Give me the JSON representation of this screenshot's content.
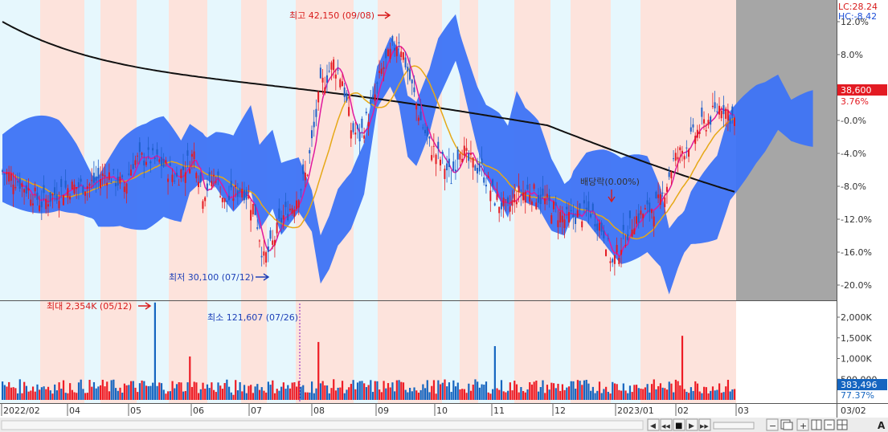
{
  "chart_data": {
    "type": "candlestick",
    "price_axis": {
      "ticks": [
        "12.0%",
        "8.0%",
        "4.0%",
        "-0.0%",
        "-4.0%",
        "-8.0%",
        "-12.0%",
        "-16.0%",
        "-20.0%"
      ],
      "values": [
        12,
        8,
        4,
        0,
        -4,
        -8,
        -12,
        -16,
        -20
      ]
    },
    "volume_axis": {
      "ticks": [
        "2,000K",
        "1,500K",
        "1,000K",
        "500,000"
      ],
      "values": [
        2000,
        1500,
        1000,
        500
      ]
    },
    "x_ticks": [
      "2022/02",
      "04",
      "05",
      "06",
      "07",
      "08",
      "09",
      "10",
      "11",
      "12",
      "2023/01",
      "02",
      "03"
    ],
    "x_tick_right": "03/02",
    "lc_label": "LC:28.24",
    "hc_label": "HC:-8.42",
    "current_price": "38,600",
    "current_change": "3.76%",
    "current_volume": "383,496",
    "current_volume_pct": "77.37%",
    "annotations": {
      "high": "최고 42,150 (09/08)",
      "low": "최저 30,100 (07/12)",
      "vol_max": "최대 2,354K (05/12)",
      "vol_min": "최소 121,607 (07/26)",
      "dividend": "배당락(0.00%)"
    },
    "price_keypoints": [
      [
        0,
        -6.2
      ],
      [
        8,
        -7.5
      ],
      [
        18,
        -10
      ],
      [
        28,
        -8.3
      ],
      [
        40,
        -7.8
      ],
      [
        48,
        -6.5
      ],
      [
        56,
        -8
      ],
      [
        60,
        -5
      ],
      [
        66,
        -4.5
      ],
      [
        72,
        -5
      ],
      [
        80,
        -7
      ],
      [
        88,
        -4
      ],
      [
        92,
        -8.8
      ],
      [
        98,
        -6.5
      ],
      [
        102,
        -10
      ],
      [
        110,
        -8
      ],
      [
        116,
        -11
      ],
      [
        120,
        -17
      ],
      [
        124,
        -15
      ],
      [
        128,
        -12
      ],
      [
        134,
        -10
      ],
      [
        140,
        -6
      ],
      [
        146,
        4
      ],
      [
        152,
        7
      ],
      [
        156,
        5
      ],
      [
        160,
        -1
      ],
      [
        164,
        -2
      ],
      [
        170,
        2
      ],
      [
        174,
        6
      ],
      [
        178,
        8
      ],
      [
        182,
        10
      ],
      [
        186,
        6
      ],
      [
        192,
        0
      ],
      [
        196,
        -3
      ],
      [
        202,
        -5
      ],
      [
        206,
        -7
      ],
      [
        210,
        -3
      ],
      [
        214,
        -5
      ],
      [
        220,
        -6
      ],
      [
        226,
        -9.5
      ],
      [
        232,
        -11
      ],
      [
        236,
        -9
      ],
      [
        242,
        -8.5
      ],
      [
        250,
        -10
      ],
      [
        258,
        -12
      ],
      [
        264,
        -11.5
      ],
      [
        270,
        -11
      ],
      [
        276,
        -13.5
      ],
      [
        280,
        -17.5
      ],
      [
        284,
        -15
      ],
      [
        290,
        -12
      ],
      [
        296,
        -11
      ],
      [
        302,
        -10
      ],
      [
        308,
        -5
      ],
      [
        314,
        -3
      ],
      [
        320,
        -1
      ],
      [
        324,
        0
      ],
      [
        330,
        2
      ],
      [
        336,
        0
      ]
    ],
    "volume_colors": {
      "up": "#ee1c25",
      "down": "#1565c0"
    },
    "cloud_color": "#3d73f5",
    "ma_colors": {
      "ma5": "#e0199e",
      "ma20": "#e6a817",
      "ma120": "#111111"
    }
  },
  "toolbar": {
    "play": "◀",
    "rewind": "◀◀",
    "stop": "■",
    "forward": "▶",
    "end": "▶▶",
    "zoom_out": "−",
    "zoom_in": "+",
    "text_tool": "A"
  }
}
